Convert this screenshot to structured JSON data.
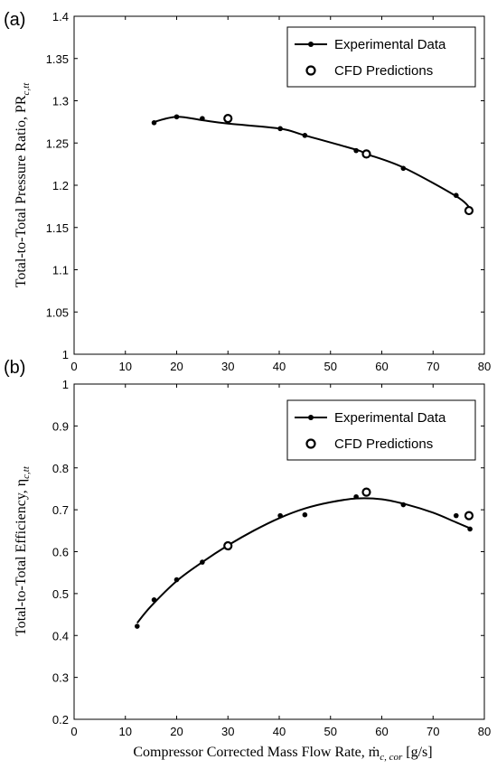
{
  "chart_data": [
    {
      "type": "line",
      "panel_label": "(a)",
      "ylabel": "Total-to-Total Pressure Ratio, PR",
      "ylabel_sub": "c,tt",
      "xlim": [
        0,
        80
      ],
      "ylim": [
        1,
        1.4
      ],
      "xticks": [
        "0",
        "10",
        "20",
        "30",
        "40",
        "50",
        "60",
        "70",
        "80"
      ],
      "yticks": [
        "1",
        "1.05",
        "1.1",
        "1.15",
        "1.2",
        "1.25",
        "1.3",
        "1.35",
        "1.4"
      ],
      "legend_position": "top-right",
      "series": [
        {
          "name": "Experimental Data",
          "marker": "filled-dot",
          "x": [
            15.6,
            20,
            25,
            40.2,
            45,
            55,
            64.2,
            74.5,
            77.2
          ],
          "y": [
            1.274,
            1.281,
            1.279,
            1.267,
            1.259,
            1.241,
            1.22,
            1.188,
            1.172
          ]
        },
        {
          "name": "CFD Predictions",
          "marker": "open-circle",
          "x": [
            30,
            57,
            77
          ],
          "y": [
            1.279,
            1.237,
            1.17
          ]
        }
      ],
      "fit_curve": {
        "x": [
          15.6,
          20,
          25,
          30,
          40.2,
          45,
          55,
          57,
          64.2,
          74.5,
          77.2
        ],
        "y": [
          1.275,
          1.281,
          1.277,
          1.273,
          1.267,
          1.259,
          1.242,
          1.237,
          1.221,
          1.187,
          1.173
        ]
      }
    },
    {
      "type": "line",
      "panel_label": "(b)",
      "ylabel": "Total-to-Total Efficiency, η",
      "ylabel_sub": "c,tt",
      "xlabel": "Compressor Corrected Mass Flow Rate, ṁ",
      "xlabel_sub": "c, cor",
      "xlabel_unit": " [g/s]",
      "xlim": [
        0,
        80
      ],
      "ylim": [
        0.2,
        1
      ],
      "xticks": [
        "0",
        "10",
        "20",
        "30",
        "40",
        "50",
        "60",
        "70",
        "80"
      ],
      "yticks": [
        "0.2",
        "0.3",
        "0.4",
        "0.5",
        "0.6",
        "0.7",
        "0.8",
        "0.9",
        "1"
      ],
      "legend_position": "top-right",
      "series": [
        {
          "name": "Experimental Data",
          "marker": "filled-dot",
          "x": [
            12.3,
            15.6,
            20,
            25,
            30,
            40.2,
            45,
            55,
            64.2,
            74.5,
            77.2
          ],
          "y": [
            0.422,
            0.485,
            0.533,
            0.575,
            0.615,
            0.686,
            0.688,
            0.731,
            0.712,
            0.686,
            0.654
          ]
        },
        {
          "name": "CFD Predictions",
          "marker": "open-circle",
          "x": [
            30,
            57,
            77
          ],
          "y": [
            0.614,
            0.742,
            0.686
          ]
        }
      ],
      "fit_curve": {
        "x": [
          12.3,
          15,
          20,
          25,
          30,
          35,
          40,
          45,
          50,
          55,
          60,
          65,
          70,
          74.5,
          77.2
        ],
        "y": [
          0.43,
          0.47,
          0.53,
          0.575,
          0.615,
          0.65,
          0.68,
          0.703,
          0.718,
          0.727,
          0.725,
          0.712,
          0.693,
          0.67,
          0.656
        ]
      }
    }
  ]
}
